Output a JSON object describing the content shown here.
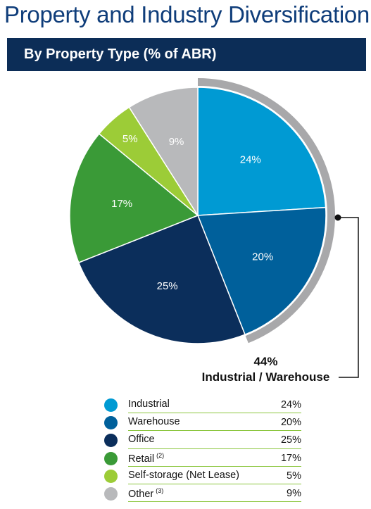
{
  "page": {
    "title": "Property and Industry Diversification",
    "section_title": "By Property Type (% of ABR)"
  },
  "callout": {
    "percent": "44%",
    "label": "Industrial / Warehouse"
  },
  "colors": {
    "industrial": "#009ad3",
    "warehouse": "#00609b",
    "office": "#0b2e5b",
    "retail": "#3a9a37",
    "self_storage": "#9ccc37",
    "other": "#b8b9bb",
    "arc": "#a8a8aa",
    "banner": "#0c2d57",
    "title": "#0f3d7a"
  },
  "chart_data": {
    "type": "pie",
    "title": "By Property Type (% of ABR)",
    "slices": [
      {
        "label": "Industrial",
        "value": 24,
        "display": "24%",
        "color": "#009ad3",
        "note": ""
      },
      {
        "label": "Warehouse",
        "value": 20,
        "display": "20%",
        "color": "#00609b",
        "note": ""
      },
      {
        "label": "Office",
        "value": 25,
        "display": "25%",
        "color": "#0b2e5b",
        "note": ""
      },
      {
        "label": "Retail",
        "value": 17,
        "display": "17%",
        "color": "#3a9a37",
        "note": "(2)"
      },
      {
        "label": "Self-storage (Net Lease)",
        "value": 5,
        "display": "5%",
        "color": "#9ccc37",
        "note": ""
      },
      {
        "label": "Other",
        "value": 9,
        "display": "9%",
        "color": "#b8b9bb",
        "note": "(3)"
      }
    ],
    "highlight": {
      "slices": [
        "Industrial",
        "Warehouse"
      ],
      "total": "44%",
      "label": "Industrial / Warehouse"
    }
  }
}
